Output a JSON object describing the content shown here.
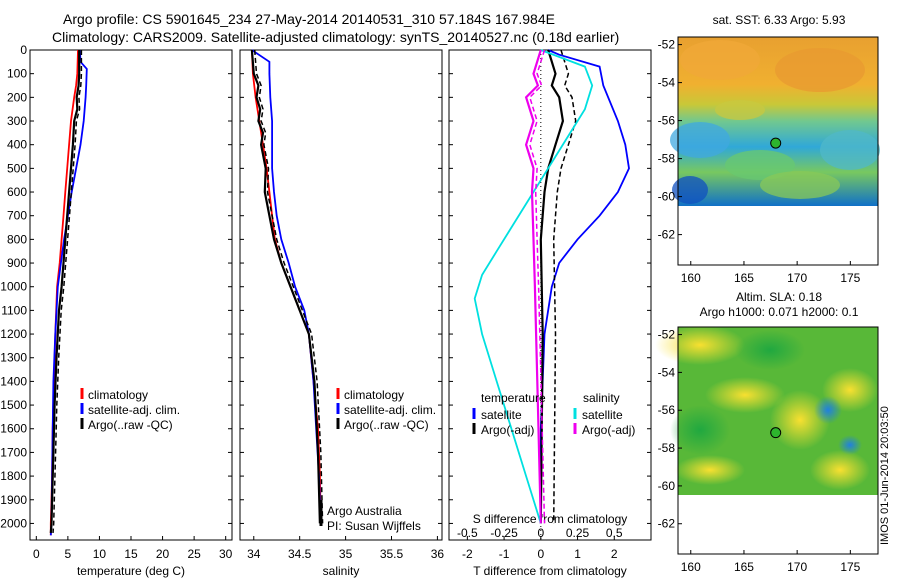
{
  "title_line1": "Argo profile: CS 5901645_234 27-May-2014 20140531_310 57.184S 167.984E",
  "title_line2": "Climatology: CARS2009. Satellite-adjusted climatology: synTS_20140527.nc (0.18d earlier)",
  "colors": {
    "climatology": "#ff0000",
    "satellite": "#0000ff",
    "argo": "#000000",
    "sat_salinity": "#00e0e0",
    "argo_salinity": "#ee00ee",
    "map_marker": "#2db52d"
  },
  "credit": "IMOS 01-Jun-2014 20:03:50",
  "chart_data": [
    {
      "id": "temperature",
      "type": "line",
      "xlabel": "temperature (deg C)",
      "xlim": [
        -1,
        31
      ],
      "ylim": [
        2070,
        0
      ],
      "xticks": [
        0,
        5,
        10,
        15,
        20,
        25,
        30
      ],
      "yticks": [
        0,
        100,
        200,
        300,
        400,
        500,
        600,
        700,
        800,
        900,
        1000,
        1100,
        1200,
        1300,
        1400,
        1500,
        1600,
        1700,
        1800,
        1900,
        2000
      ],
      "legend": [
        "climatology",
        "satellite-adj. clim.",
        "Argo(..raw -QC)"
      ],
      "series": [
        {
          "name": "climatology",
          "color": "climatology",
          "x": [
            6.6,
            6.5,
            6.3,
            6.0,
            5.5,
            5.2,
            4.9,
            4.6,
            4.3,
            4.0,
            3.7,
            3.3,
            3.0,
            2.8,
            2.6,
            2.5,
            2.4,
            2.3,
            2.3
          ],
          "y": [
            0,
            100,
            150,
            200,
            300,
            400,
            500,
            600,
            700,
            800,
            900,
            1000,
            1200,
            1400,
            1600,
            1800,
            1900,
            2000,
            2050
          ]
        },
        {
          "name": "satellite-adj. clim.",
          "color": "satellite",
          "x": [
            6.9,
            7.0,
            8.0,
            7.9,
            7.8,
            7.5,
            7.0,
            6.3,
            5.6,
            5.0,
            4.4,
            3.9,
            3.4,
            3.0,
            2.7,
            2.6,
            2.5,
            2.4,
            2.3
          ],
          "y": [
            0,
            50,
            80,
            150,
            200,
            300,
            400,
            500,
            600,
            700,
            800,
            900,
            1000,
            1200,
            1400,
            1600,
            1800,
            2000,
            2050
          ]
        },
        {
          "name": "Argo(..raw -QC)",
          "color": "argo",
          "x": [
            6.8,
            6.8,
            6.7,
            6.4,
            6.5,
            6.0,
            5.8,
            5.5,
            5.2,
            4.9,
            4.6,
            4.3,
            4.0,
            3.6,
            3.2,
            2.9,
            2.7,
            2.5,
            2.4,
            2.3
          ],
          "y": [
            0,
            100,
            150,
            200,
            250,
            300,
            400,
            500,
            600,
            700,
            800,
            900,
            1000,
            1100,
            1300,
            1500,
            1700,
            1900,
            2000,
            2040
          ]
        }
      ]
    },
    {
      "id": "salinity",
      "type": "line",
      "xlabel": "salinity",
      "xlim": [
        33.85,
        36.05
      ],
      "ylim": [
        2070,
        0
      ],
      "xticks": [
        34,
        34.5,
        35,
        35.5,
        36
      ],
      "legend": [
        "climatology",
        "satellite-adj. clim.",
        "Argo(..raw -QC)"
      ],
      "annotations": [
        "Argo Australia",
        "PI: Susan Wijffels"
      ],
      "series": [
        {
          "name": "climatology",
          "color": "climatology",
          "x": [
            33.98,
            33.99,
            34.02,
            34.06,
            34.1,
            34.14,
            34.17,
            34.2,
            34.23,
            34.3,
            34.4,
            34.5,
            34.6,
            34.65,
            34.7,
            34.72,
            34.73
          ],
          "y": [
            0,
            100,
            200,
            300,
            400,
            500,
            600,
            700,
            800,
            900,
            1000,
            1100,
            1200,
            1400,
            1600,
            1800,
            2000
          ]
        },
        {
          "name": "satellite-adj. clim.",
          "color": "satellite",
          "x": [
            33.98,
            34.17,
            34.17,
            34.18,
            34.2,
            34.2,
            34.2,
            34.22,
            34.25,
            34.3,
            34.38,
            34.45,
            34.55,
            34.6,
            34.65,
            34.68,
            34.71,
            34.73
          ],
          "y": [
            0,
            50,
            100,
            200,
            300,
            400,
            500,
            600,
            700,
            800,
            900,
            1000,
            1100,
            1200,
            1400,
            1600,
            1800,
            2000
          ]
        },
        {
          "name": "Argo(..raw -QC)",
          "color": "argo",
          "x": [
            33.98,
            34.0,
            34.05,
            34.03,
            34.07,
            34.05,
            34.1,
            34.08,
            34.13,
            34.12,
            34.17,
            34.22,
            34.3,
            34.4,
            34.5,
            34.6,
            34.66,
            34.7,
            34.72
          ],
          "y": [
            0,
            100,
            150,
            200,
            250,
            300,
            350,
            400,
            500,
            600,
            700,
            800,
            900,
            1000,
            1100,
            1200,
            1400,
            1700,
            2000
          ]
        }
      ]
    },
    {
      "id": "differences",
      "type": "line",
      "xlabel": "T difference from climatology",
      "xlabel_top": "S difference from climatology",
      "xlim": [
        -2.5,
        3.0
      ],
      "ylim": [
        2070,
        0
      ],
      "xticks": [
        -2,
        -1,
        0,
        1,
        2
      ],
      "sticks": [
        -0.5,
        -0.25,
        0,
        0.25,
        0.5
      ],
      "legend_headers": [
        "temperature",
        "salinity"
      ],
      "legend": [
        "satellite",
        "Argo(-adj)",
        "satellite",
        "Argo(-adj)"
      ],
      "series": [
        {
          "name": "temperature satellite",
          "color": "satellite",
          "x": [
            0.2,
            0.5,
            1.6,
            1.7,
            2.1,
            2.3,
            2.4,
            2.1,
            1.6,
            1.0,
            0.5,
            0.3,
            0.1,
            0.0,
            0.0
          ],
          "y": [
            0,
            20,
            70,
            150,
            300,
            400,
            500,
            600,
            700,
            800,
            900,
            1000,
            1200,
            1600,
            2000
          ]
        },
        {
          "name": "temperature Argo(-adj)",
          "color": "argo",
          "x": [
            0.2,
            0.4,
            0.3,
            0.5,
            0.6,
            0.4,
            0.2,
            0.1,
            0.0,
            0.05,
            0.0
          ],
          "y": [
            0,
            100,
            150,
            200,
            300,
            400,
            500,
            600,
            800,
            1200,
            2000
          ]
        },
        {
          "name": "salinity satellite",
          "color": "sat_salinity",
          "x": [
            0.0,
            0.3,
            0.35,
            0.3,
            0.2,
            0.1,
            0.0,
            -0.1,
            -0.2,
            -0.3,
            -0.4,
            -0.45,
            -0.4,
            -0.3,
            -0.2,
            -0.1,
            0.0
          ],
          "y": [
            0,
            70,
            150,
            250,
            350,
            450,
            550,
            650,
            750,
            850,
            950,
            1050,
            1200,
            1400,
            1600,
            1800,
            2000
          ]
        },
        {
          "name": "salinity Argo(-adj)",
          "color": "argo_salinity",
          "x": [
            0.0,
            -0.05,
            -0.02,
            -0.1,
            -0.05,
            -0.1,
            -0.05,
            -0.06,
            -0.05,
            -0.04,
            -0.02,
            0.0
          ],
          "y": [
            0,
            100,
            150,
            200,
            300,
            400,
            500,
            600,
            800,
            1000,
            1500,
            2000
          ]
        }
      ]
    },
    {
      "id": "sst-map",
      "type": "heatmap",
      "title": "sat. SST: 6.33  Argo: 5.93",
      "xticks": [
        160,
        165,
        170,
        175
      ],
      "yticks": [
        -52,
        -54,
        -56,
        -58,
        -60,
        -62
      ],
      "xlim": [
        158.8,
        177.6
      ],
      "ylim": [
        -63.6,
        -51.6
      ],
      "marker": {
        "lon": 167.984,
        "lat": -57.184
      }
    },
    {
      "id": "sla-map",
      "type": "heatmap",
      "title_line1": "Altim. SLA: 0.18",
      "title_line2": "Argo h1000: 0.071 h2000: 0.1",
      "xticks": [
        160,
        165,
        170,
        175
      ],
      "yticks": [
        -52,
        -54,
        -56,
        -58,
        -60,
        -62
      ],
      "xlim": [
        158.8,
        177.6
      ],
      "ylim": [
        -63.6,
        -51.6
      ],
      "marker": {
        "lon": 167.984,
        "lat": -57.184
      }
    }
  ]
}
